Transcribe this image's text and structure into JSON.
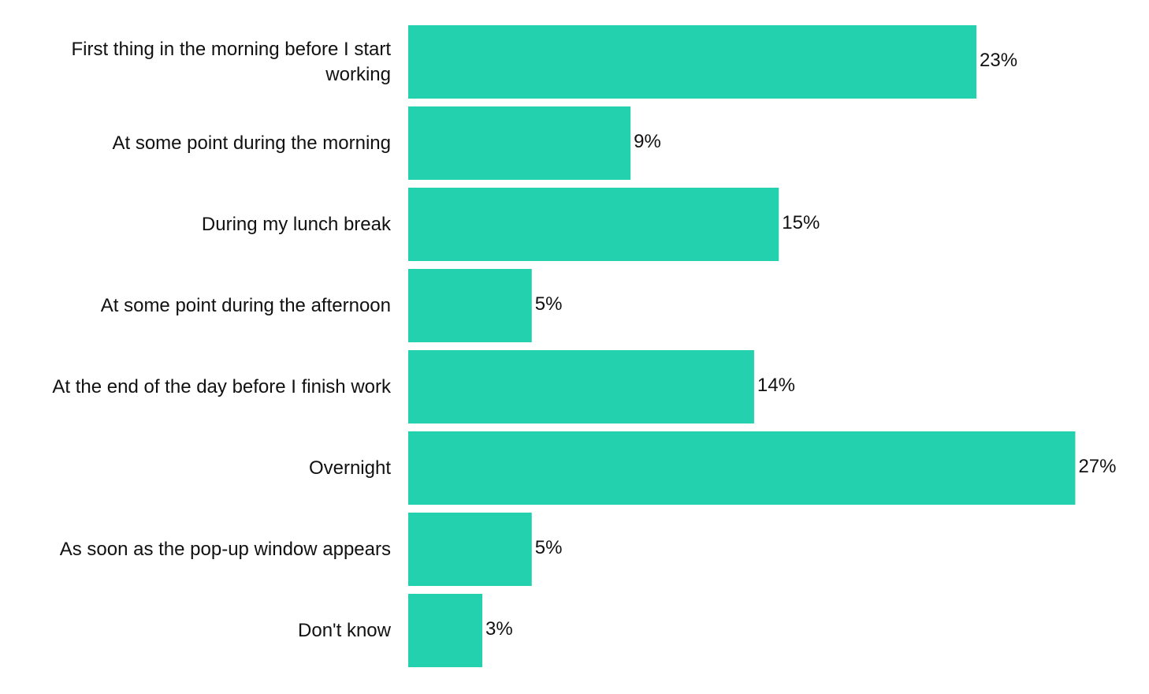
{
  "chart_data": {
    "type": "bar",
    "orientation": "horizontal",
    "title": "",
    "xlabel": "",
    "ylabel": "",
    "unit": "%",
    "bar_color": "#24d1ae",
    "text_color": "#111111",
    "xlim": [
      0,
      27
    ],
    "grid": false,
    "legend": "none",
    "categories": [
      "First thing in the morning before I start working",
      "At some point during the morning",
      "During my lunch break",
      "At some point during the afternoon",
      "At the end of the day before I finish work",
      "Overnight",
      "As soon as the pop-up window appears",
      "Don't know"
    ],
    "category_lines": [
      [
        "First thing in the morning before I start",
        "working"
      ],
      [
        "At some point during the morning"
      ],
      [
        "During my lunch break"
      ],
      [
        "At some point during the afternoon"
      ],
      [
        "At the end of the day before I finish work"
      ],
      [
        "Overnight"
      ],
      [
        "As soon as the pop-up window appears"
      ],
      [
        "Don't know"
      ]
    ],
    "values": [
      23,
      9,
      15,
      5,
      14,
      27,
      5,
      3
    ],
    "value_labels": [
      "23%",
      "9%",
      "15%",
      "5%",
      "14%",
      "27%",
      "5%",
      "3%"
    ]
  }
}
